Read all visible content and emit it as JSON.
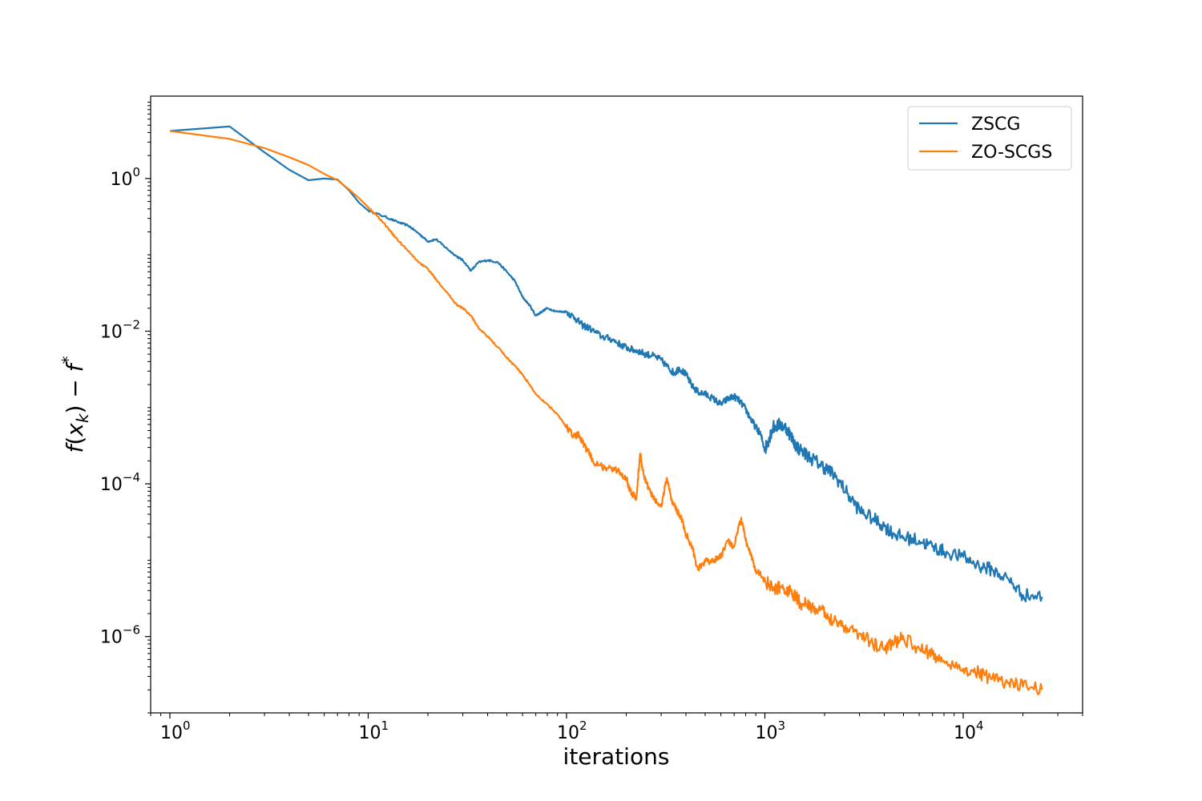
{
  "chart_data": {
    "type": "line",
    "title": "",
    "xlabel": "iterations",
    "ylabel": "f(x_k) − f*",
    "xscale": "log",
    "yscale": "log",
    "xlim": [
      0.8,
      40000
    ],
    "ylim": [
      1e-07,
      12
    ],
    "x_ticks": [
      {
        "value": 1,
        "base": "10",
        "exp": "0"
      },
      {
        "value": 10,
        "base": "10",
        "exp": "1"
      },
      {
        "value": 100,
        "base": "10",
        "exp": "2"
      },
      {
        "value": 1000,
        "base": "10",
        "exp": "3"
      },
      {
        "value": 10000,
        "base": "10",
        "exp": "4"
      }
    ],
    "y_ticks": [
      {
        "value": 1,
        "base": "10",
        "exp": "0"
      },
      {
        "value": 0.01,
        "base": "10",
        "exp": "−2"
      },
      {
        "value": 0.0001,
        "base": "10",
        "exp": "−4"
      },
      {
        "value": 1e-06,
        "base": "10",
        "exp": "−6"
      }
    ],
    "grid": false,
    "legend_position": "top-right",
    "series": [
      {
        "name": "ZSCG",
        "color": "#1f77b4",
        "points": [
          [
            1,
            4.2
          ],
          [
            2,
            4.8
          ],
          [
            3,
            2.2
          ],
          [
            4,
            1.3
          ],
          [
            5,
            0.95
          ],
          [
            6,
            1.0
          ],
          [
            7,
            0.97
          ],
          [
            8,
            0.7
          ],
          [
            9,
            0.48
          ],
          [
            10,
            0.38
          ],
          [
            12,
            0.32
          ],
          [
            14,
            0.27
          ],
          [
            16,
            0.24
          ],
          [
            18,
            0.19
          ],
          [
            20,
            0.15
          ],
          [
            22,
            0.16
          ],
          [
            25,
            0.12
          ],
          [
            28,
            0.095
          ],
          [
            30,
            0.085
          ],
          [
            33,
            0.062
          ],
          [
            36,
            0.08
          ],
          [
            40,
            0.085
          ],
          [
            45,
            0.08
          ],
          [
            50,
            0.06
          ],
          [
            55,
            0.045
          ],
          [
            60,
            0.028
          ],
          [
            65,
            0.022
          ],
          [
            70,
            0.016
          ],
          [
            75,
            0.018
          ],
          [
            80,
            0.02
          ],
          [
            90,
            0.018
          ],
          [
            100,
            0.018
          ],
          [
            110,
            0.015
          ],
          [
            120,
            0.012
          ],
          [
            130,
            0.011
          ],
          [
            150,
            0.0085
          ],
          [
            170,
            0.0078
          ],
          [
            190,
            0.0065
          ],
          [
            210,
            0.0058
          ],
          [
            230,
            0.0055
          ],
          [
            250,
            0.005
          ],
          [
            270,
            0.0048
          ],
          [
            300,
            0.0042
          ],
          [
            330,
            0.0032
          ],
          [
            350,
            0.0028
          ],
          [
            370,
            0.0033
          ],
          [
            400,
            0.0027
          ],
          [
            430,
            0.0019
          ],
          [
            460,
            0.0016
          ],
          [
            500,
            0.0015
          ],
          [
            550,
            0.0013
          ],
          [
            600,
            0.0011
          ],
          [
            650,
            0.0013
          ],
          [
            700,
            0.0014
          ],
          [
            750,
            0.0012
          ],
          [
            800,
            0.00095
          ],
          [
            850,
            0.0007
          ],
          [
            900,
            0.00055
          ],
          [
            950,
            0.00045
          ],
          [
            1000,
            0.00028
          ],
          [
            1050,
            0.0004
          ],
          [
            1100,
            0.00055
          ],
          [
            1200,
            0.0006
          ],
          [
            1300,
            0.00052
          ],
          [
            1400,
            0.00035
          ],
          [
            1500,
            0.00028
          ],
          [
            1700,
            0.00022
          ],
          [
            1900,
            0.00018
          ],
          [
            2100,
            0.00015
          ],
          [
            2300,
            0.00012
          ],
          [
            2600,
            7.5e-05
          ],
          [
            3000,
            4.5e-05
          ],
          [
            3500,
            3.5e-05
          ],
          [
            4000,
            2.8e-05
          ],
          [
            4500,
            2.2e-05
          ],
          [
            5000,
            2e-05
          ],
          [
            6000,
            1.8e-05
          ],
          [
            7000,
            1.5e-05
          ],
          [
            8000,
            1.3e-05
          ],
          [
            10000,
            1.1e-05
          ],
          [
            12000,
            8.5e-06
          ],
          [
            14000,
            7.5e-06
          ],
          [
            17000,
            5.5e-06
          ],
          [
            20000,
            3.5e-06
          ],
          [
            25000,
            3.3e-06
          ]
        ]
      },
      {
        "name": "ZO-SCGS",
        "color": "#ff7f0e",
        "points": [
          [
            1,
            4.2
          ],
          [
            2,
            3.3
          ],
          [
            3,
            2.5
          ],
          [
            4,
            1.9
          ],
          [
            5,
            1.5
          ],
          [
            6,
            1.15
          ],
          [
            7,
            0.95
          ],
          [
            8,
            0.72
          ],
          [
            9,
            0.55
          ],
          [
            10,
            0.42
          ],
          [
            11,
            0.33
          ],
          [
            12,
            0.26
          ],
          [
            13,
            0.2
          ],
          [
            14,
            0.16
          ],
          [
            16,
            0.11
          ],
          [
            18,
            0.08
          ],
          [
            20,
            0.065
          ],
          [
            22,
            0.048
          ],
          [
            25,
            0.032
          ],
          [
            28,
            0.022
          ],
          [
            30,
            0.02
          ],
          [
            33,
            0.016
          ],
          [
            36,
            0.011
          ],
          [
            40,
            0.0085
          ],
          [
            45,
            0.0062
          ],
          [
            50,
            0.0045
          ],
          [
            55,
            0.0035
          ],
          [
            60,
            0.0027
          ],
          [
            65,
            0.002
          ],
          [
            70,
            0.0015
          ],
          [
            80,
            0.0011
          ],
          [
            90,
            0.00082
          ],
          [
            100,
            0.00055
          ],
          [
            110,
            0.00042
          ],
          [
            115,
            0.00045
          ],
          [
            120,
            0.00035
          ],
          [
            130,
            0.00025
          ],
          [
            140,
            0.00018
          ],
          [
            160,
            0.00016
          ],
          [
            180,
            0.00015
          ],
          [
            200,
            0.00012
          ],
          [
            210,
            8e-05
          ],
          [
            225,
            6.5e-05
          ],
          [
            235,
            0.00025
          ],
          [
            245,
            0.00013
          ],
          [
            260,
            8.5e-05
          ],
          [
            280,
            6e-05
          ],
          [
            300,
            5e-05
          ],
          [
            320,
            0.00012
          ],
          [
            340,
            6e-05
          ],
          [
            360,
            4.5e-05
          ],
          [
            380,
            3.5e-05
          ],
          [
            400,
            2.2e-05
          ],
          [
            430,
            1.5e-05
          ],
          [
            460,
            7.5e-06
          ],
          [
            500,
            9.5e-06
          ],
          [
            550,
            1e-05
          ],
          [
            600,
            1.1e-05
          ],
          [
            650,
            1.8e-05
          ],
          [
            700,
            1.5e-05
          ],
          [
            760,
            3.6e-05
          ],
          [
            800,
            1.8e-05
          ],
          [
            850,
            1.2e-05
          ],
          [
            900,
            7.5e-06
          ],
          [
            1000,
            5.5e-06
          ],
          [
            1100,
            4e-06
          ],
          [
            1200,
            4.5e-06
          ],
          [
            1300,
            4e-06
          ],
          [
            1400,
            3.5e-06
          ],
          [
            1500,
            2.8e-06
          ],
          [
            1700,
            2.5e-06
          ],
          [
            1900,
            2.2e-06
          ],
          [
            2100,
            1.8e-06
          ],
          [
            2300,
            1.6e-06
          ],
          [
            2600,
            1.3e-06
          ],
          [
            3000,
            1.1e-06
          ],
          [
            3500,
            8e-07
          ],
          [
            4000,
            7e-07
          ],
          [
            4500,
            8.5e-07
          ],
          [
            5000,
            9.5e-07
          ],
          [
            6000,
            7e-07
          ],
          [
            7000,
            5.8e-07
          ],
          [
            8000,
            4.8e-07
          ],
          [
            10000,
            3.8e-07
          ],
          [
            12000,
            3.3e-07
          ],
          [
            14000,
            2.8e-07
          ],
          [
            17000,
            2.5e-07
          ],
          [
            20000,
            2.2e-07
          ],
          [
            25000,
            2e-07
          ]
        ]
      }
    ]
  }
}
